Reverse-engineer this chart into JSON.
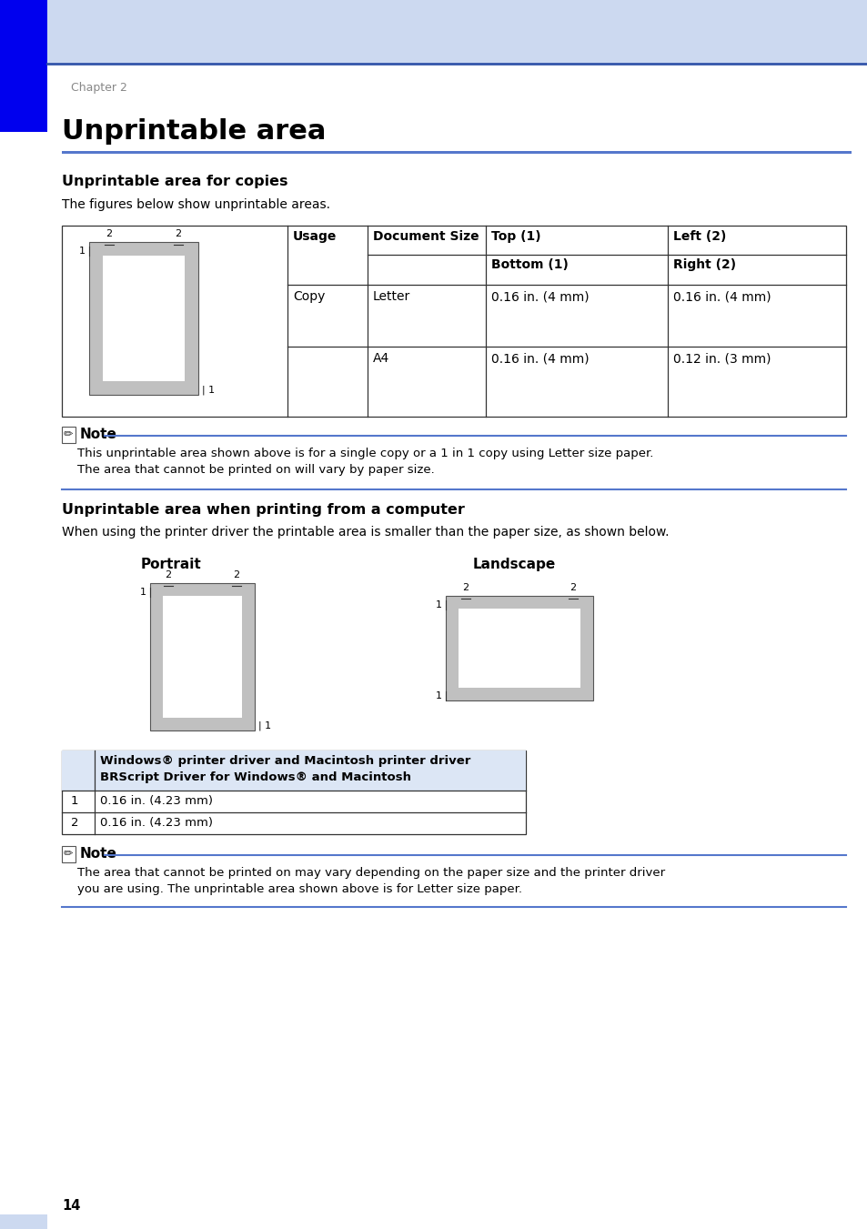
{
  "bg_color": "#ffffff",
  "header_bg": "#ccd9f0",
  "sidebar_color": "#0000ee",
  "blue_line_color": "#5577cc",
  "title_color": "#000000",
  "chapter_color": "#888888",
  "page_title": "Unprintable area",
  "chapter_label": "Chapter 2",
  "section1_title": "Unprintable area for copies",
  "section1_subtitle": "The figures below show unprintable areas.",
  "note1_line1": "This unprintable area shown above is for a single copy or a 1 in 1 copy using Letter size paper.",
  "note1_line2": "The area that cannot be printed on will vary by paper size.",
  "section2_title": "Unprintable area when printing from a computer",
  "section2_subtitle": "When using the printer driver the printable area is smaller than the paper size, as shown below.",
  "portrait_label": "Portrait",
  "landscape_label": "Landscape",
  "note2_line1": "The area that cannot be printed on may vary depending on the paper size and the printer driver",
  "note2_line2": "you are using. The unprintable area shown above is for Letter size paper.",
  "page_number": "14",
  "gray_fill": "#c0c0c0",
  "white_fill": "#ffffff",
  "table_border": "#333333",
  "note_bg": "#ffffff",
  "table2_hdr_bg": "#dce6f5",
  "win_line1": "Windows® printer driver and Macintosh printer driver",
  "win_line2": "BRScript Driver for Windows® and Macintosh",
  "row1_val": "0.16 in. (4.23 mm)",
  "row2_val": "0.16 in. (4.23 mm)"
}
